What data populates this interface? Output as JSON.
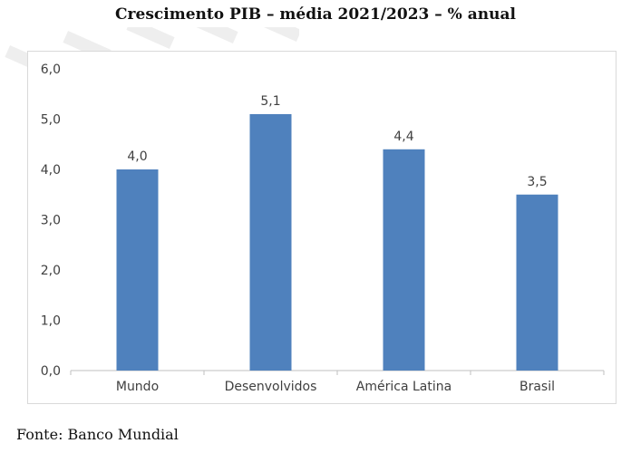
{
  "header": {
    "title": "Crescimento PIB – média 2021/2023 – % anual"
  },
  "footer": {
    "source": "Fonte: Banco Mundial"
  },
  "colors": {
    "bar": "#4f81bd",
    "axis": "#bfbfbf",
    "text": "#404040"
  },
  "chart_data": {
    "type": "bar",
    "title": "Crescimento PIB – média 2021/2023 – % anual",
    "xlabel": "",
    "ylabel": "",
    "categories": [
      "Mundo",
      "Desenvolvidos",
      "América Latina",
      "Brasil"
    ],
    "values": [
      4.0,
      5.1,
      4.4,
      3.5
    ],
    "data_labels": [
      "4,0",
      "5,1",
      "4,4",
      "3,5"
    ],
    "ylim": [
      0,
      6
    ],
    "yticks": [
      0,
      1,
      2,
      3,
      4,
      5,
      6
    ],
    "ytick_labels": [
      "0,0",
      "1,0",
      "2,0",
      "3,0",
      "4,0",
      "5,0",
      "6,0"
    ],
    "grid": false,
    "legend": "none"
  }
}
